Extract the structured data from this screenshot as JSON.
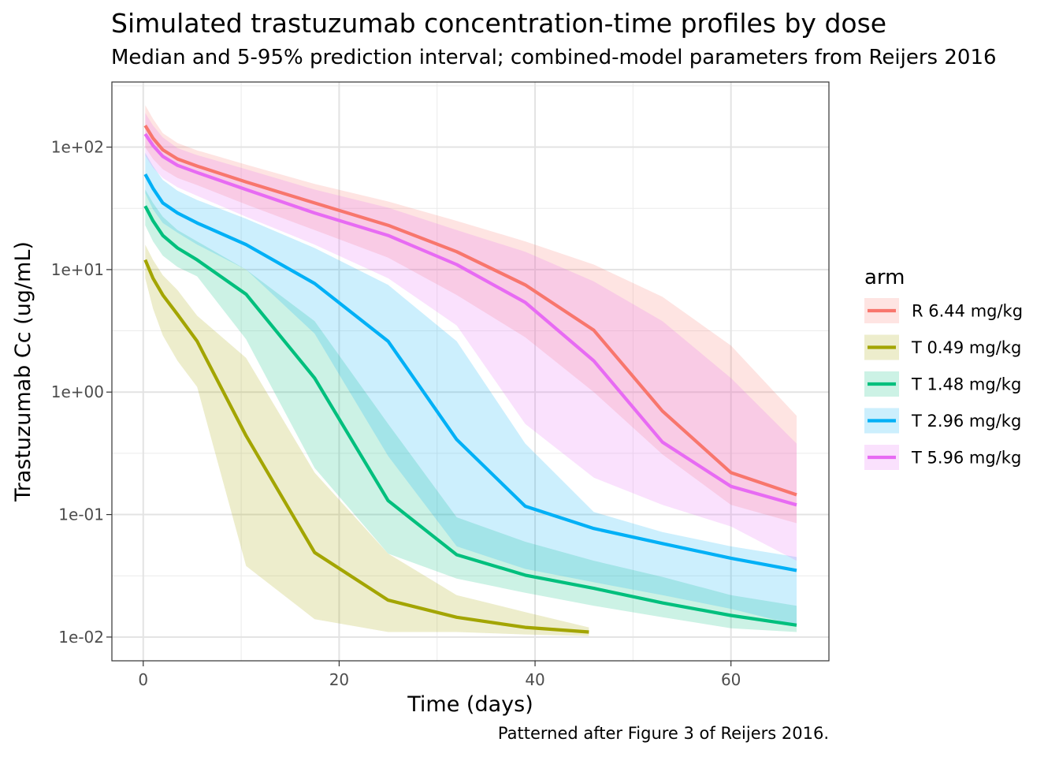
{
  "header": {
    "title": "Simulated trastuzumab concentration-time profiles by dose",
    "subtitle": "Median and 5-95% prediction interval; combined-model parameters from Reijers 2016"
  },
  "caption": "Patterned after Figure 3 of Reijers 2016.",
  "legend": {
    "title": "arm"
  },
  "chart_data": {
    "type": "line",
    "title": "Simulated trastuzumab concentration-time profiles by dose",
    "subtitle": "Median and 5-95% prediction interval; combined-model parameters from Reijers 2016",
    "xlabel": "Time (days)",
    "ylabel": "Trastuzumab Cc (ug/mL)",
    "xlim": [
      -3.2,
      70
    ],
    "xticks": [
      0,
      20,
      40,
      60
    ],
    "xtick_labels": [
      "0",
      "20",
      "40",
      "60"
    ],
    "ylim": [
      0.0064,
      340
    ],
    "yscale": "log",
    "yticks": [
      0.01,
      0.1,
      1,
      10,
      100
    ],
    "ytick_labels": [
      "1e-02",
      "1e-01",
      "1e+00",
      "1e+01",
      "1e+02"
    ],
    "grid": true,
    "legend_position": "right",
    "series": [
      {
        "name": "R 6.44 mg/kg",
        "color": "#F8766D",
        "x": [
          0.2,
          1,
          2,
          3.5,
          5.5,
          10.5,
          17.5,
          25,
          32,
          39,
          46,
          53,
          60,
          66.7
        ],
        "median": [
          150,
          118,
          95,
          80,
          70,
          52,
          35,
          23,
          14,
          7.5,
          3.2,
          0.7,
          0.22,
          0.145
        ],
        "lower": [
          100,
          80,
          66,
          56,
          49,
          34,
          21,
          12.5,
          6.2,
          2.8,
          1.0,
          0.31,
          0.12,
          0.085
        ],
        "upper": [
          220,
          170,
          130,
          108,
          94,
          72,
          50,
          36,
          25,
          17,
          11,
          6.0,
          2.4,
          0.64
        ]
      },
      {
        "name": "T 0.49 mg/kg",
        "color": "#A3A500",
        "x": [
          0.2,
          1,
          2,
          3.5,
          5.5,
          10.5,
          17.5,
          25,
          32,
          39,
          45.5
        ],
        "median": [
          12,
          8.5,
          6.2,
          4.3,
          2.6,
          0.44,
          0.049,
          0.02,
          0.0145,
          0.012,
          0.011
        ],
        "lower": [
          8.5,
          4.8,
          2.9,
          1.8,
          1.1,
          0.038,
          0.014,
          0.011,
          0.011,
          0.0105,
          0.0102
        ],
        "upper": [
          16,
          12,
          9.0,
          6.8,
          4.2,
          1.9,
          0.22,
          0.048,
          0.022,
          0.016,
          0.012
        ]
      },
      {
        "name": "T 1.48 mg/kg",
        "color": "#00BF7D",
        "x": [
          0.2,
          1,
          2,
          3.5,
          5.5,
          10.5,
          17.5,
          25,
          32,
          39,
          46,
          53,
          60,
          66.7
        ],
        "median": [
          33,
          25,
          19,
          15,
          12,
          6.3,
          1.3,
          0.13,
          0.047,
          0.032,
          0.025,
          0.019,
          0.015,
          0.0125
        ],
        "lower": [
          23,
          17,
          13,
          10.5,
          8.8,
          2.7,
          0.24,
          0.048,
          0.03,
          0.023,
          0.018,
          0.0145,
          0.0118,
          0.011
        ],
        "upper": [
          45,
          35,
          27,
          21,
          17,
          10,
          3.8,
          0.55,
          0.095,
          0.06,
          0.042,
          0.031,
          0.022,
          0.018
        ]
      },
      {
        "name": "T 2.96 mg/kg",
        "color": "#00B0F6",
        "x": [
          0.2,
          1,
          2,
          3.5,
          5.5,
          10.5,
          17.5,
          25,
          32,
          39,
          46,
          53,
          60,
          66.7
        ],
        "median": [
          60,
          46,
          35,
          29,
          24,
          16,
          7.7,
          2.6,
          0.41,
          0.117,
          0.077,
          0.058,
          0.044,
          0.035
        ],
        "lower": [
          42,
          31,
          24,
          20,
          16,
          10,
          3.0,
          0.3,
          0.055,
          0.036,
          0.028,
          0.022,
          0.017,
          0.0125
        ],
        "upper": [
          90,
          70,
          54,
          44,
          37,
          26,
          15,
          7.5,
          2.6,
          0.38,
          0.105,
          0.072,
          0.055,
          0.045
        ]
      },
      {
        "name": "T 5.96 mg/kg",
        "color": "#E76BF3",
        "x": [
          0.2,
          1,
          2,
          3.5,
          5.5,
          10.5,
          17.5,
          25,
          32,
          39,
          46,
          53,
          60,
          66.7
        ],
        "median": [
          128,
          103,
          84,
          71,
          62,
          45,
          29,
          19,
          11,
          5.4,
          1.8,
          0.39,
          0.17,
          0.12
        ],
        "lower": [
          85,
          68,
          56,
          47,
          40,
          27,
          16,
          8.5,
          3.5,
          0.55,
          0.2,
          0.12,
          0.08,
          0.042
        ],
        "upper": [
          190,
          150,
          120,
          98,
          86,
          66,
          45,
          32,
          21,
          14,
          8,
          3.8,
          1.3,
          0.38
        ]
      }
    ]
  }
}
